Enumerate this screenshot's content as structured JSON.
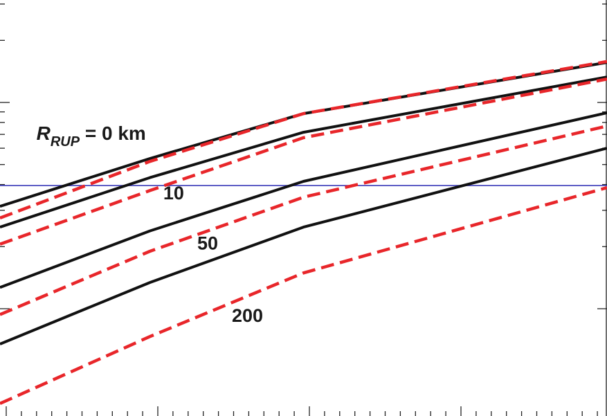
{
  "chart_data": {
    "type": "line",
    "title": "",
    "xlabel": "",
    "ylabel": "",
    "xlim": [
      0,
      100
    ],
    "ylim": [
      0,
      100
    ],
    "grid": false,
    "reference_line": {
      "y": 55.4,
      "color": "#3a3ab8"
    },
    "series": [
      {
        "group": "0",
        "style": "solid",
        "color": "#111111",
        "x": [
          0,
          24.7,
          50,
          100
        ],
        "y": [
          50.4,
          61.9,
          72.7,
          85.0
        ]
      },
      {
        "group": "0",
        "style": "dashed",
        "color": "#e8262a",
        "x": [
          0,
          24.7,
          50,
          100
        ],
        "y": [
          47.6,
          61.2,
          72.7,
          85.2
        ]
      },
      {
        "group": "10",
        "style": "solid",
        "color": "#111111",
        "x": [
          0,
          24.7,
          50,
          100
        ],
        "y": [
          45.4,
          57.3,
          68.2,
          81.5
        ]
      },
      {
        "group": "10",
        "style": "dashed",
        "color": "#e8262a",
        "x": [
          0,
          24.7,
          50,
          100
        ],
        "y": [
          41.3,
          54.2,
          66.9,
          81.0
        ]
      },
      {
        "group": "50",
        "style": "solid",
        "color": "#111111",
        "x": [
          0,
          24.7,
          50,
          100
        ],
        "y": [
          30.9,
          44.5,
          56.4,
          72.9
        ]
      },
      {
        "group": "50",
        "style": "dashed",
        "color": "#e8262a",
        "x": [
          0,
          24.7,
          50,
          100
        ],
        "y": [
          24.4,
          39.6,
          52.6,
          69.7
        ]
      },
      {
        "group": "200",
        "style": "solid",
        "color": "#111111",
        "x": [
          0,
          24.7,
          50,
          100
        ],
        "y": [
          17.3,
          32.1,
          45.4,
          64.4
        ]
      },
      {
        "group": "200",
        "style": "dashed",
        "color": "#e8262a",
        "x": [
          0,
          24.7,
          50,
          100
        ],
        "y": [
          3.0,
          19.1,
          34.4,
          54.9
        ]
      }
    ],
    "annotations": [
      {
        "text": "R",
        "sub": "RUP",
        "suffix": " = 0 km",
        "x": 6.0,
        "y": 66.4
      },
      {
        "text": "10",
        "x": 26.9,
        "y": 52.1
      },
      {
        "text": "50",
        "x": 32.5,
        "y": 40.0
      },
      {
        "text": "200",
        "x": 38.2,
        "y": 22.6
      }
    ]
  },
  "colors": {
    "solid": "#111111",
    "dashed": "#e8262a",
    "reference": "#3a3ab8",
    "axis": "#222222"
  }
}
